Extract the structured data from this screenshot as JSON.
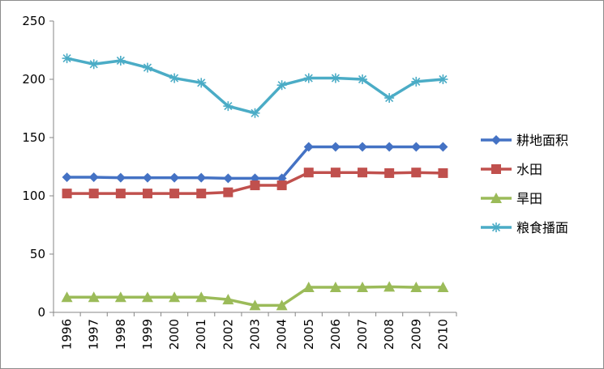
{
  "chart_data": {
    "type": "line",
    "categories": [
      "1996",
      "1997",
      "1998",
      "1999",
      "2000",
      "2001",
      "2002",
      "2003",
      "2004",
      "2005",
      "2006",
      "2007",
      "2008",
      "2009",
      "2010"
    ],
    "ylim": [
      0,
      250
    ],
    "yticks": [
      "0",
      "50",
      "100",
      "150",
      "200",
      "250"
    ],
    "grid": false,
    "legend_position": "right",
    "series": [
      {
        "name": "耕地面积",
        "marker": "diamond",
        "color": "#4472c4",
        "values": [
          116,
          116,
          115.5,
          115.5,
          115.5,
          115.5,
          115,
          115,
          115,
          142,
          142,
          142,
          142,
          142,
          142
        ]
      },
      {
        "name": "水田",
        "marker": "square",
        "color": "#c0504d",
        "values": [
          102,
          102,
          102,
          102,
          102,
          102,
          103,
          109,
          109,
          120,
          120,
          120,
          119.5,
          120,
          119.5
        ]
      },
      {
        "name": "旱田",
        "marker": "triangle",
        "color": "#9bbb59",
        "values": [
          13,
          13,
          13,
          13,
          13,
          13,
          11,
          6,
          6,
          21.5,
          21.5,
          21.5,
          22,
          21.5,
          21.5
        ]
      },
      {
        "name": "粮食播面",
        "marker": "star",
        "color": "#4bacc6",
        "values": [
          218,
          213,
          216,
          210,
          201,
          197,
          177,
          171,
          195,
          201,
          201,
          200,
          184,
          198,
          200
        ]
      }
    ]
  }
}
